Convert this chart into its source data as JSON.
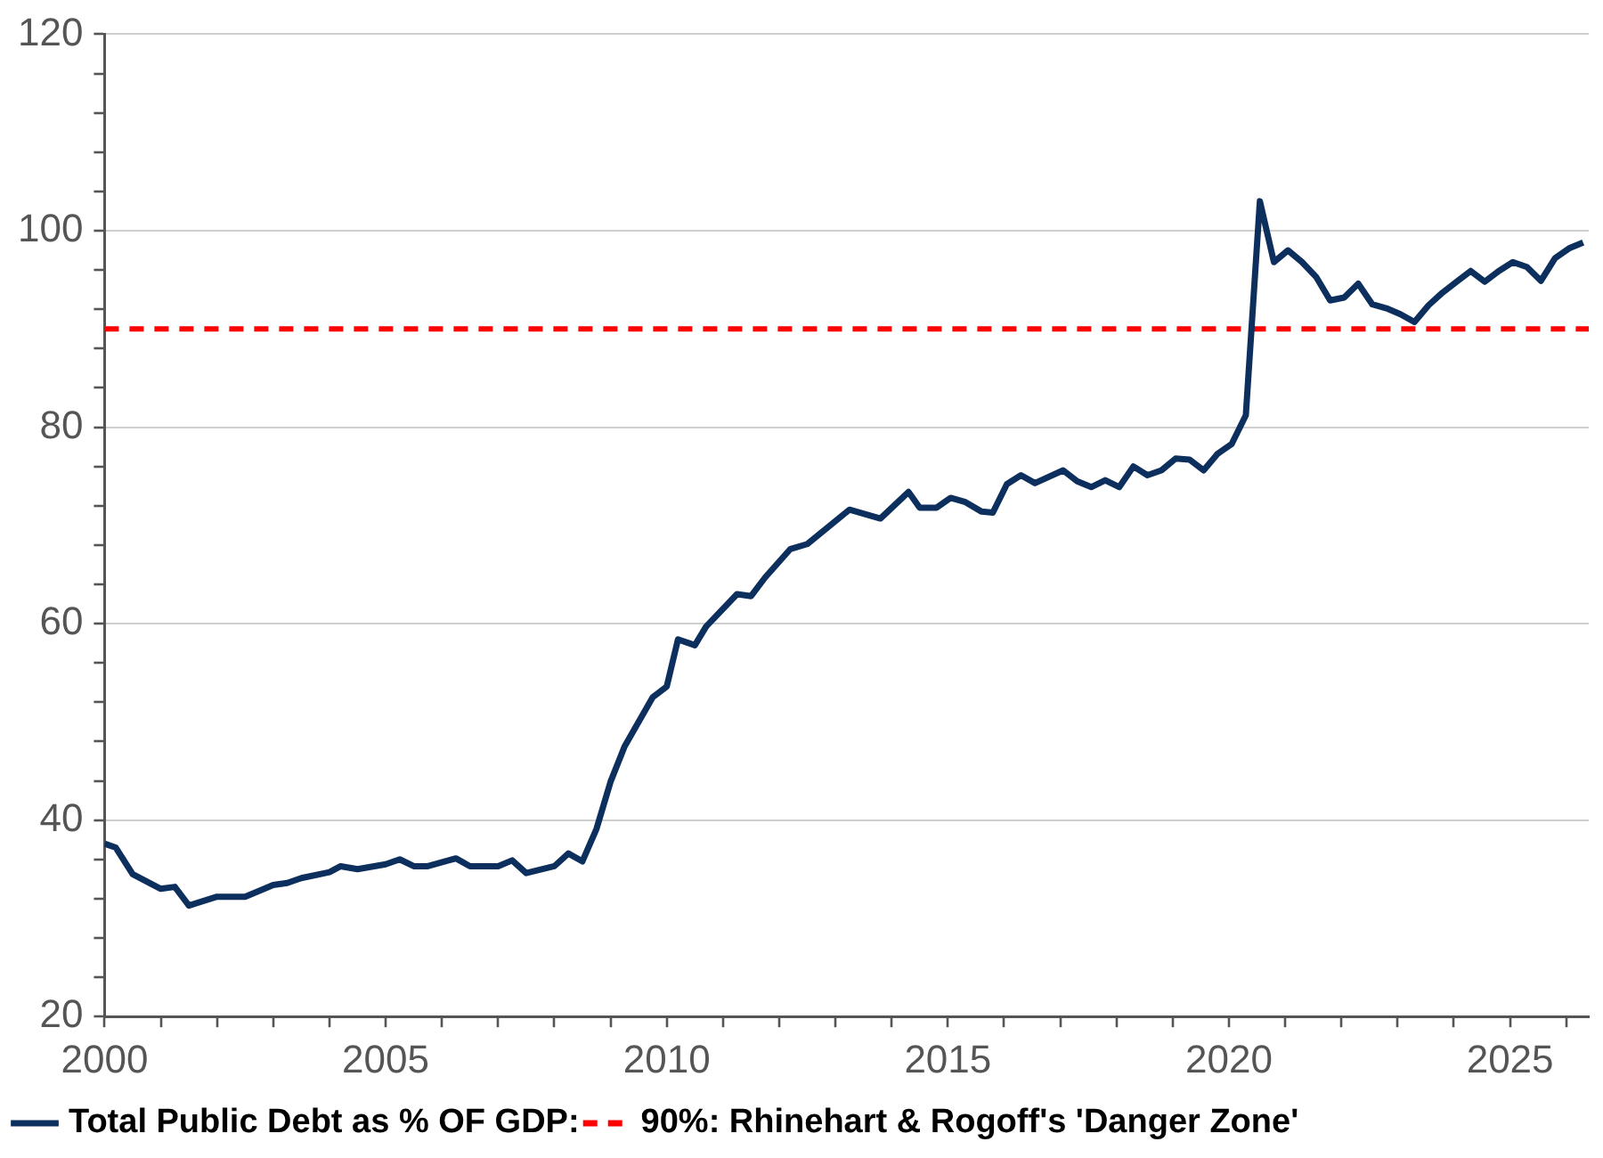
{
  "chart_data": {
    "type": "line",
    "x": [
      2000,
      2000.2,
      2000.5,
      2001,
      2001.25,
      2001.5,
      2002,
      2002.5,
      2003,
      2003.25,
      2003.5,
      2004,
      2004.2,
      2004.5,
      2005,
      2005.25,
      2005.5,
      2005.75,
      2006.25,
      2006.5,
      2007,
      2007.25,
      2007.5,
      2008,
      2008.25,
      2008.5,
      2008.75,
      2009,
      2009.25,
      2009.75,
      2010,
      2010.2,
      2010.5,
      2010.7,
      2011.25,
      2011.5,
      2011.75,
      2012.2,
      2012.5,
      2013.25,
      2013.8,
      2014.3,
      2014.5,
      2014.8,
      2015.05,
      2015.3,
      2015.6,
      2015.8,
      2016.05,
      2016.3,
      2016.55,
      2017.05,
      2017.3,
      2017.55,
      2017.8,
      2018.05,
      2018.3,
      2018.55,
      2018.8,
      2019.05,
      2019.3,
      2019.55,
      2019.8,
      2020.05,
      2020.3,
      2020.55,
      2020.8,
      2021.05,
      2021.3,
      2021.55,
      2021.8,
      2022.05,
      2022.3,
      2022.55,
      2022.8,
      2023.05,
      2023.3,
      2023.55,
      2023.8,
      2024.05,
      2024.3,
      2024.55,
      2024.8,
      2025.05,
      2025.3,
      2025.55,
      2025.8,
      2026.05,
      2026.3
    ],
    "series": [
      {
        "name": "Total Public Debt as % OF GDP:",
        "color": "#0d2f5e",
        "values": [
          37.6,
          37.2,
          34.5,
          33.0,
          33.2,
          31.3,
          32.2,
          32.2,
          33.4,
          33.6,
          34.1,
          34.7,
          35.3,
          35.0,
          35.5,
          36.0,
          35.3,
          35.3,
          36.1,
          35.3,
          35.3,
          35.9,
          34.6,
          35.3,
          36.6,
          35.8,
          39.1,
          43.9,
          47.5,
          52.5,
          53.6,
          58.4,
          57.8,
          59.7,
          63.0,
          62.8,
          64.7,
          67.6,
          68.1,
          71.6,
          70.7,
          73.4,
          71.8,
          71.8,
          72.8,
          72.4,
          71.4,
          71.3,
          74.2,
          75.1,
          74.3,
          75.6,
          74.5,
          73.9,
          74.6,
          73.9,
          76.0,
          75.1,
          75.6,
          76.8,
          76.7,
          75.6,
          77.3,
          78.3,
          81.2,
          103.0,
          96.8,
          98.0,
          96.8,
          95.3,
          92.9,
          93.2,
          94.6,
          92.5,
          92.1,
          91.5,
          90.7,
          92.4,
          93.7,
          94.8,
          95.9,
          94.8,
          95.9,
          96.8,
          96.3,
          94.9,
          97.2,
          98.2,
          98.8
        ]
      }
    ],
    "ref_lines": [
      {
        "axis": "y",
        "value": 90,
        "label": "90%: Rhinehart & Rogoff's 'Danger Zone'",
        "color": "#ff0000",
        "line_style": "dashed"
      }
    ],
    "xlim": [
      2000,
      2026.4
    ],
    "xticks": [
      2000,
      {
        "value": 2001,
        "label": null
      },
      {
        "value": 2002,
        "label": null
      },
      {
        "value": 2003,
        "label": null
      },
      {
        "value": 2004,
        "label": null
      },
      2005,
      {
        "value": 2006,
        "label": null
      },
      {
        "value": 2007,
        "label": null
      },
      {
        "value": 2008,
        "label": null
      },
      {
        "value": 2009,
        "label": null
      },
      2010,
      {
        "value": 2011,
        "label": null
      },
      {
        "value": 2012,
        "label": null
      },
      {
        "value": 2013,
        "label": null
      },
      {
        "value": 2014,
        "label": null
      },
      2015,
      {
        "value": 2016,
        "label": null
      },
      {
        "value": 2017,
        "label": null
      },
      {
        "value": 2018,
        "label": null
      },
      {
        "value": 2019,
        "label": null
      },
      2020,
      {
        "value": 2021,
        "label": null
      },
      {
        "value": 2022,
        "label": null
      },
      {
        "value": 2023,
        "label": null
      },
      {
        "value": 2024,
        "label": null
      },
      2025,
      {
        "value": 2026,
        "label": null
      }
    ],
    "ylim": [
      20,
      120
    ],
    "yticks": [
      20,
      {
        "value": 24,
        "label": null
      },
      {
        "value": 28,
        "label": null
      },
      {
        "value": 32,
        "label": null
      },
      {
        "value": 36,
        "label": null
      },
      40,
      {
        "value": 44,
        "label": null
      },
      {
        "value": 48,
        "label": null
      },
      {
        "value": 52,
        "label": null
      },
      {
        "value": 56,
        "label": null
      },
      60,
      {
        "value": 64,
        "label": null
      },
      {
        "value": 68,
        "label": null
      },
      {
        "value": 72,
        "label": null
      },
      {
        "value": 76,
        "label": null
      },
      80,
      {
        "value": 84,
        "label": null
      },
      {
        "value": 88,
        "label": null
      },
      {
        "value": 92,
        "label": null
      },
      {
        "value": 96,
        "label": null
      },
      100,
      {
        "value": 104,
        "label": null
      },
      {
        "value": 108,
        "label": null
      },
      {
        "value": 112,
        "label": null
      },
      {
        "value": 116,
        "label": null
      },
      120
    ],
    "grid": "y",
    "legend": "bottom left",
    "marker": "none",
    "line_style": "solid"
  }
}
